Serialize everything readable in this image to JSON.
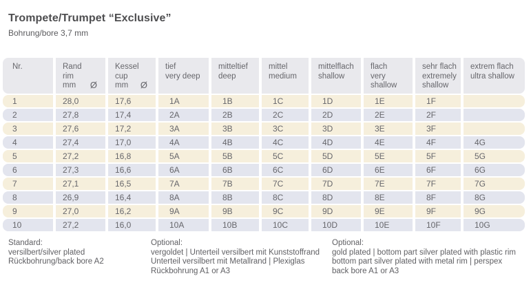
{
  "page": {
    "title": "Trompete/Trumpet “Exclusive”",
    "subtitle": "Bohrung/bore 3,7 mm"
  },
  "colors": {
    "header_bg": "#e9e9ed",
    "row_cream": "#f6efdc",
    "row_blue": "#e3e5ee",
    "text_gray": "#66666b",
    "title_gray": "#4e4e50"
  },
  "table": {
    "headers": [
      {
        "lines": [
          "Nr."
        ]
      },
      {
        "lines": [
          "Rand",
          "rim",
          "mm"
        ],
        "diameter_symbol": "Ø"
      },
      {
        "lines": [
          "Kessel",
          "cup",
          "mm"
        ],
        "diameter_symbol": "Ø"
      },
      {
        "lines": [
          "tief",
          "very deep"
        ]
      },
      {
        "lines": [
          "mitteltief",
          "deep"
        ]
      },
      {
        "lines": [
          "mittel",
          "medium"
        ]
      },
      {
        "lines": [
          "mittelflach",
          "shallow"
        ]
      },
      {
        "lines": [
          "flach",
          "very shallow"
        ]
      },
      {
        "lines": [
          "sehr flach",
          "extremely",
          "shallow"
        ]
      },
      {
        "lines": [
          "extrem flach",
          "ultra shallow"
        ]
      }
    ],
    "rows": [
      {
        "cells": [
          "1",
          "28,0",
          "17,6",
          "1A",
          "1B",
          "1C",
          "1D",
          "1E",
          "1F",
          ""
        ]
      },
      {
        "cells": [
          "2",
          "27,8",
          "17,4",
          "2A",
          "2B",
          "2C",
          "2D",
          "2E",
          "2F",
          ""
        ]
      },
      {
        "cells": [
          "3",
          "27,6",
          "17,2",
          "3A",
          "3B",
          "3C",
          "3D",
          "3E",
          "3F",
          ""
        ]
      },
      {
        "cells": [
          "4",
          "27,4",
          "17,0",
          "4A",
          "4B",
          "4C",
          "4D",
          "4E",
          "4F",
          "4G"
        ]
      },
      {
        "cells": [
          "5",
          "27,2",
          "16,8",
          "5A",
          "5B",
          "5C",
          "5D",
          "5E",
          "5F",
          "5G"
        ]
      },
      {
        "cells": [
          "6",
          "27,3",
          "16,6",
          "6A",
          "6B",
          "6C",
          "6D",
          "6E",
          "6F",
          "6G"
        ]
      },
      {
        "cells": [
          "7",
          "27,1",
          "16,5",
          "7A",
          "7B",
          "7C",
          "7D",
          "7E",
          "7F",
          "7G"
        ]
      },
      {
        "cells": [
          "8",
          "26,9",
          "16,4",
          "8A",
          "8B",
          "8C",
          "8D",
          "8E",
          "8F",
          "8G"
        ]
      },
      {
        "cells": [
          "9",
          "27,0",
          "16,2",
          "9A",
          "9B",
          "9C",
          "9D",
          "9E",
          "9F",
          "9G"
        ]
      },
      {
        "cells": [
          "10",
          "27,2",
          "16,0",
          "10A",
          "10B",
          "10C",
          "10D",
          "10E",
          "10F",
          "10G"
        ]
      }
    ]
  },
  "footnotes": [
    {
      "title": "Standard:",
      "lines": [
        "versilbert/silver plated",
        "Rückbohrung/back bore A2"
      ]
    },
    {
      "title": "Optional:",
      "lines": [
        "vergoldet | Unterteil versilbert mit Kunststoffrand",
        "Unterteil versilbert mit Metallrand | Plexiglas",
        "Rückbohrung A1 or A3"
      ]
    },
    {
      "title": "Optional:",
      "lines": [
        "gold plated | bottom part silver plated with plastic rim",
        "bottom part silver plated with metal rim | perspex",
        "back bore A1 or A3"
      ]
    }
  ]
}
